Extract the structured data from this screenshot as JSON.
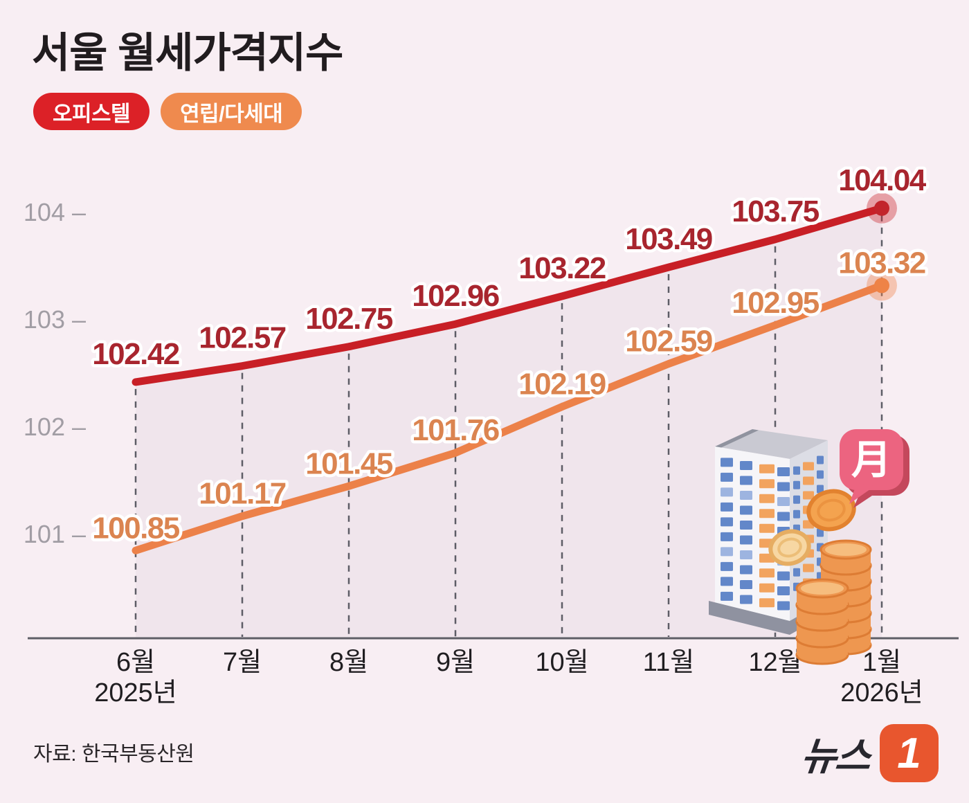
{
  "title": "서울 월세가격지수",
  "legend": [
    {
      "label": "오피스텔",
      "color": "#dc2127"
    },
    {
      "label": "연립/다세대",
      "color": "#ef8a4e"
    }
  ],
  "source": "자료: 한국부동산원",
  "logo": {
    "brand": "뉴스",
    "mark": "1",
    "mark_color": "#e8562e"
  },
  "illustration": {
    "bubble_char": "月"
  },
  "chart_data": {
    "type": "line",
    "title": "서울 월세가격지수",
    "categories": [
      "6월",
      "7월",
      "8월",
      "9월",
      "10월",
      "11월",
      "12월",
      "1월"
    ],
    "year_labels": [
      {
        "index": 0,
        "label": "2025년"
      },
      {
        "index": 7,
        "label": "2026년"
      }
    ],
    "y_axis": {
      "ticks": [
        104,
        103,
        102,
        101
      ],
      "tick_labels": [
        "104 –",
        "103 –",
        "102 –",
        "101 –"
      ]
    },
    "series": [
      {
        "name": "오피스텔",
        "color": "#c81f26",
        "label_color": "#a8252e",
        "dot_color": "#c2242b",
        "halo_color": "rgba(200,32,40,0.38)",
        "values": [
          102.42,
          102.57,
          102.75,
          102.96,
          103.22,
          103.49,
          103.75,
          104.04
        ]
      },
      {
        "name": "연립/다세대",
        "color": "#ec8149",
        "label_color": "#db8450",
        "dot_color": "#ee8347",
        "halo_color": "rgba(238,129,72,0.38)",
        "values": [
          100.85,
          101.17,
          101.45,
          101.76,
          102.19,
          102.59,
          102.95,
          103.32
        ]
      }
    ],
    "grid": "dashed-vertical-per-point",
    "legend_position": "top-left",
    "fill_under_top_series": "rgba(122,81,141,0.06)"
  }
}
